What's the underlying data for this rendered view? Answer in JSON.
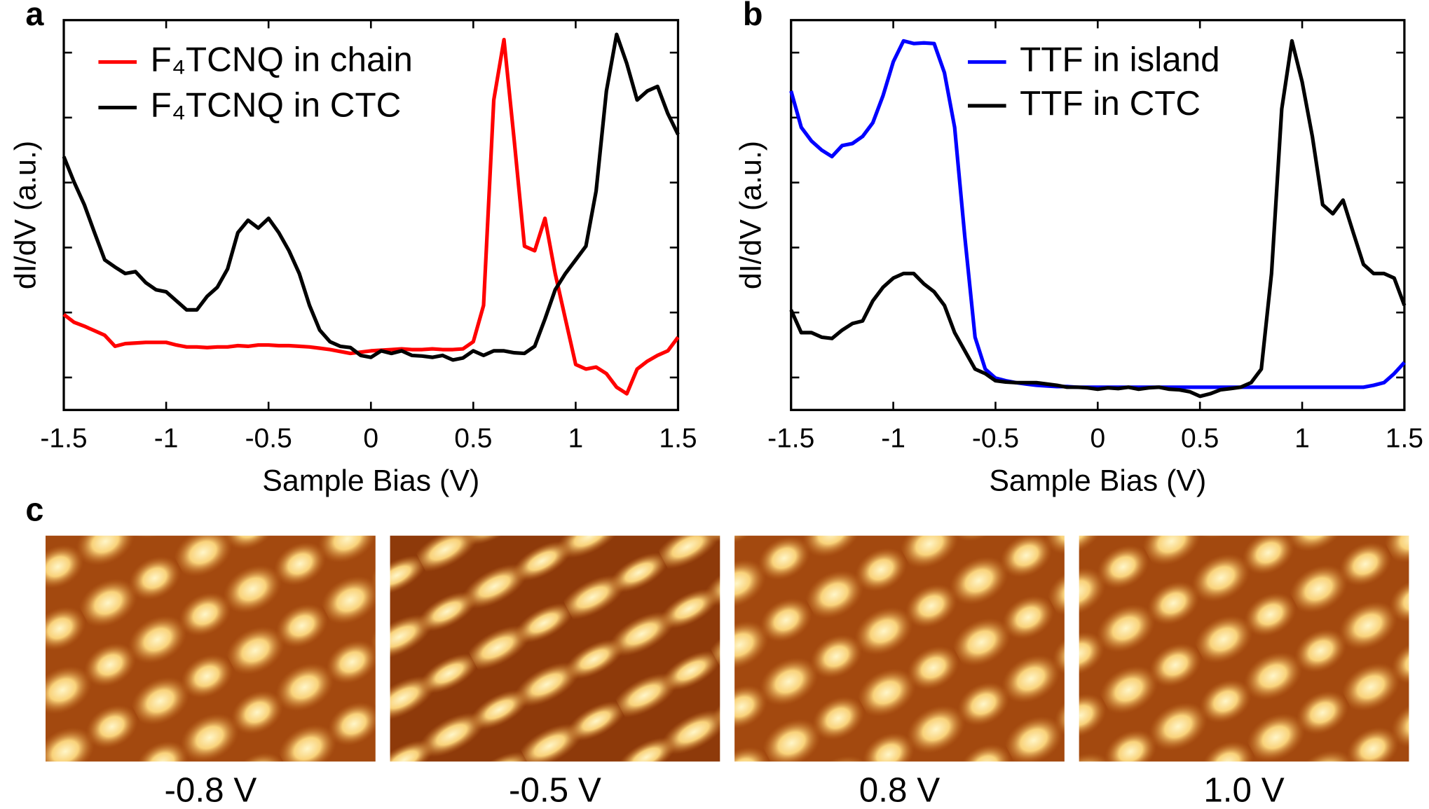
{
  "chart_data": [
    {
      "type": "line",
      "label": "a",
      "xlabel": "Sample Bias (V)",
      "ylabel": "dI/dV (a.u.)",
      "xlim": [
        -1.5,
        1.5
      ],
      "xticks": [
        -1.5,
        -1,
        -0.5,
        0,
        0.5,
        1,
        1.5
      ],
      "ylim": [
        0.5,
        6.5
      ],
      "yticks": [
        1,
        2,
        3,
        4,
        5,
        6
      ],
      "x": [
        -1.5,
        -1.45,
        -1.4,
        -1.35,
        -1.3,
        -1.25,
        -1.2,
        -1.15,
        -1.1,
        -1.05,
        -1,
        -0.95,
        -0.9,
        -0.85,
        -0.8,
        -0.75,
        -0.7,
        -0.65,
        -0.6,
        -0.55,
        -0.5,
        -0.45,
        -0.4,
        -0.35,
        -0.3,
        -0.25,
        -0.2,
        -0.15,
        -0.1,
        -0.05,
        0,
        0.05,
        0.1,
        0.15,
        0.2,
        0.25,
        0.3,
        0.35,
        0.4,
        0.45,
        0.5,
        0.55,
        0.6,
        0.65,
        0.7,
        0.75,
        0.8,
        0.85,
        0.9,
        0.95,
        1,
        1.05,
        1.1,
        1.15,
        1.2,
        1.25,
        1.3,
        1.35,
        1.4,
        1.45,
        1.5
      ],
      "series": [
        {
          "name": "F₄TCNQ in chain",
          "color": "#ff0000",
          "values": [
            1.97,
            1.85,
            1.79,
            1.72,
            1.65,
            1.48,
            1.52,
            1.53,
            1.54,
            1.54,
            1.54,
            1.5,
            1.47,
            1.47,
            1.46,
            1.47,
            1.47,
            1.49,
            1.48,
            1.5,
            1.5,
            1.49,
            1.49,
            1.48,
            1.47,
            1.45,
            1.43,
            1.4,
            1.37,
            1.39,
            1.41,
            1.42,
            1.43,
            1.44,
            1.43,
            1.43,
            1.44,
            1.43,
            1.43,
            1.44,
            1.55,
            2.11,
            5.27,
            6.2,
            4.64,
            3.02,
            2.95,
            3.45,
            2.6,
            1.9,
            1.2,
            1.13,
            1.16,
            1.06,
            0.85,
            0.75,
            1.13,
            1.25,
            1.34,
            1.41,
            1.62
          ]
        },
        {
          "name": "F₄TCNQ in CTC",
          "color": "#000000",
          "values": [
            4.4,
            4.01,
            3.66,
            3.23,
            2.81,
            2.7,
            2.6,
            2.63,
            2.46,
            2.35,
            2.32,
            2.18,
            2.04,
            2.04,
            2.25,
            2.39,
            2.67,
            3.23,
            3.42,
            3.3,
            3.45,
            3.23,
            2.95,
            2.6,
            2.11,
            1.73,
            1.55,
            1.48,
            1.46,
            1.34,
            1.31,
            1.41,
            1.37,
            1.41,
            1.34,
            1.33,
            1.31,
            1.34,
            1.27,
            1.3,
            1.41,
            1.34,
            1.41,
            1.41,
            1.38,
            1.37,
            1.48,
            1.9,
            2.35,
            2.6,
            2.81,
            3.02,
            3.87,
            5.41,
            6.28,
            5.83,
            5.27,
            5.41,
            5.48,
            5.06,
            4.74
          ]
        }
      ]
    },
    {
      "type": "line",
      "label": "b",
      "xlabel": "Sample Bias (V)",
      "ylabel": "dI/dV (a.u.)",
      "xlim": [
        -1.5,
        1.5
      ],
      "xticks": [
        -1.5,
        -1,
        -0.5,
        0,
        0.5,
        1,
        1.5
      ],
      "ylim": [
        0.5,
        6.5
      ],
      "yticks": [
        1,
        2,
        3,
        4,
        5,
        6
      ],
      "x": [
        -1.5,
        -1.45,
        -1.4,
        -1.35,
        -1.3,
        -1.25,
        -1.2,
        -1.15,
        -1.1,
        -1.05,
        -1,
        -0.95,
        -0.9,
        -0.85,
        -0.8,
        -0.75,
        -0.7,
        -0.65,
        -0.6,
        -0.55,
        -0.5,
        -0.45,
        -0.4,
        -0.35,
        -0.3,
        -0.25,
        -0.2,
        -0.15,
        -0.1,
        -0.05,
        0,
        0.05,
        0.1,
        0.15,
        0.2,
        0.25,
        0.3,
        0.35,
        0.4,
        0.45,
        0.5,
        0.55,
        0.6,
        0.65,
        0.7,
        0.75,
        0.8,
        0.85,
        0.9,
        0.95,
        1,
        1.05,
        1.1,
        1.15,
        1.2,
        1.25,
        1.3,
        1.35,
        1.4,
        1.45,
        1.5
      ],
      "series": [
        {
          "name": "TTF in island",
          "color": "#0000ff",
          "values": [
            5.41,
            4.85,
            4.64,
            4.5,
            4.4,
            4.57,
            4.6,
            4.71,
            4.92,
            5.34,
            5.86,
            6.18,
            6.14,
            6.15,
            6.14,
            5.69,
            4.85,
            3.16,
            1.62,
            1.13,
            0.99,
            0.95,
            0.92,
            0.9,
            0.88,
            0.87,
            0.86,
            0.86,
            0.85,
            0.85,
            0.85,
            0.85,
            0.85,
            0.85,
            0.85,
            0.85,
            0.85,
            0.85,
            0.85,
            0.85,
            0.85,
            0.85,
            0.85,
            0.85,
            0.85,
            0.85,
            0.85,
            0.85,
            0.85,
            0.85,
            0.85,
            0.85,
            0.85,
            0.85,
            0.85,
            0.85,
            0.85,
            0.88,
            0.92,
            1.06,
            1.23
          ]
        },
        {
          "name": "TTF in CTC",
          "color": "#000000",
          "values": [
            2.04,
            1.69,
            1.69,
            1.62,
            1.6,
            1.73,
            1.83,
            1.87,
            2.18,
            2.39,
            2.53,
            2.6,
            2.6,
            2.44,
            2.32,
            2.11,
            1.69,
            1.41,
            1.13,
            1.06,
            0.95,
            0.93,
            0.92,
            0.92,
            0.92,
            0.9,
            0.88,
            0.85,
            0.85,
            0.84,
            0.82,
            0.84,
            0.83,
            0.85,
            0.82,
            0.84,
            0.85,
            0.82,
            0.81,
            0.78,
            0.71,
            0.75,
            0.81,
            0.83,
            0.85,
            0.92,
            1.13,
            2.6,
            5.13,
            6.18,
            5.55,
            4.71,
            3.66,
            3.52,
            3.73,
            3.23,
            2.74,
            2.6,
            2.6,
            2.53,
            2.11
          ]
        }
      ]
    }
  ],
  "panel_c": {
    "label": "c",
    "captions": [
      "-0.8 V",
      "-0.5 V",
      "0.8 V",
      "1.0 V"
    ]
  }
}
